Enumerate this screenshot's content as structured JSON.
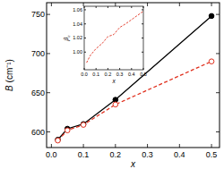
{
  "chart_data": [
    {
      "type": "line",
      "xlabel": "x",
      "ylabel": "B (cm⁻¹)",
      "xlim": [
        -0.015,
        0.525
      ],
      "ylim": [
        580,
        765
      ],
      "xticks": [
        {
          "value": 0,
          "label": "0.0"
        },
        0.1,
        0.2,
        0.3,
        0.4,
        0.5
      ],
      "yticks": [
        600,
        650,
        700,
        750
      ],
      "x": [
        0.02,
        0.05,
        0.1,
        0.2,
        0.5
      ],
      "series": [
        {
          "name": "",
          "color": "#000000",
          "marker": "circle",
          "line_style": "solid",
          "values": [
            590,
            604,
            610,
            641,
            748
          ]
        },
        {
          "name": "",
          "color": "#e0301e",
          "marker": "open-circle",
          "line_style": "dashed",
          "values": [
            589,
            602,
            609,
            635,
            690
          ]
        }
      ]
    },
    {
      "type": "line",
      "xlabel": "x",
      "ylabel": "βc",
      "xlim": [
        0,
        0.5
      ],
      "ylim": [
        0.975,
        1.065
      ],
      "xticks": [
        {
          "value": 0,
          "label": "0.0"
        },
        0.1,
        0.2,
        0.3,
        0.4,
        0.5
      ],
      "yticks": [
        {
          "value": 1,
          "label": "1.00"
        },
        1.02,
        1.04,
        1.06
      ],
      "x": [
        0.02,
        0.05,
        0.1,
        0.15,
        0.2,
        0.25,
        0.3,
        0.35,
        0.4,
        0.45,
        0.5
      ],
      "series": [
        {
          "name": "",
          "color": "#e0301e",
          "line_style": "dashed",
          "values": [
            0.985,
            0.995,
            1.005,
            1.012,
            1.022,
            1.025,
            1.035,
            1.04,
            1.046,
            1.052,
            1.058
          ]
        }
      ]
    }
  ]
}
